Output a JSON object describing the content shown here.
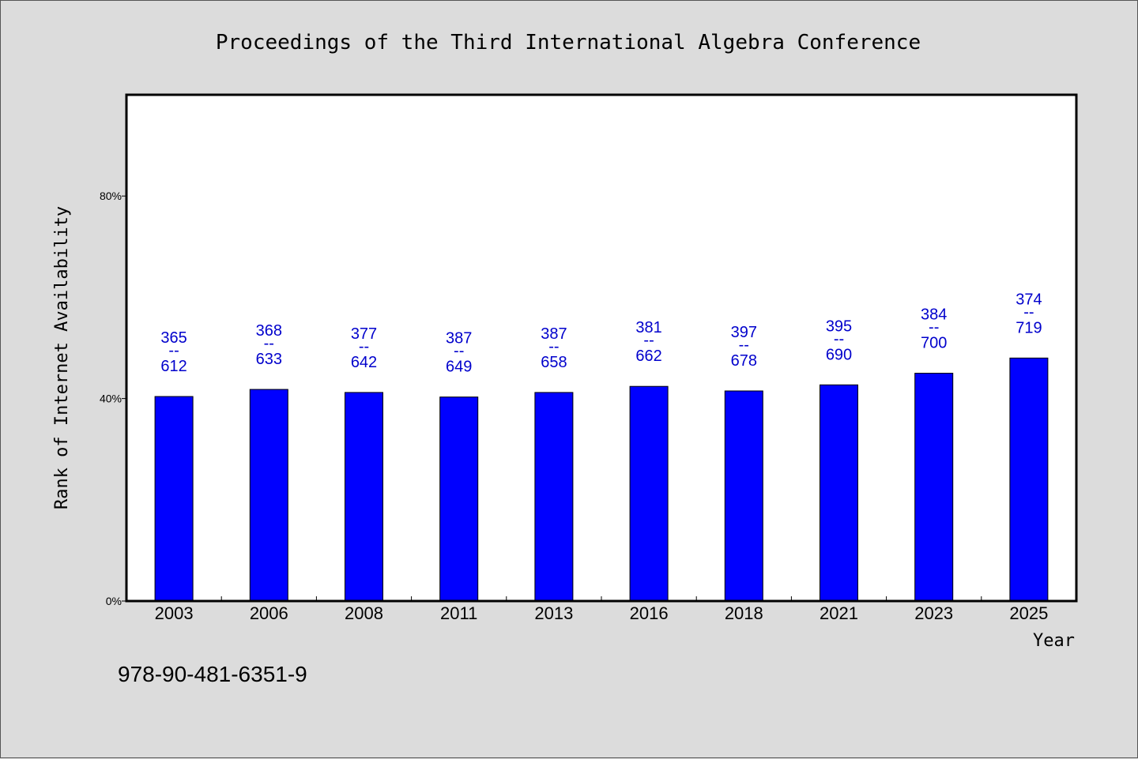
{
  "chart_data": {
    "type": "bar",
    "title": "Proceedings of the Third International Algebra Conference",
    "xlabel": "Year",
    "ylabel": "Rank of Internet Availability",
    "ylim": [
      0,
      100
    ],
    "yticks": [
      0,
      40,
      80
    ],
    "ytick_labels": [
      "0%",
      "40%",
      "80%"
    ],
    "categories": [
      "2003",
      "2006",
      "2008",
      "2011",
      "2013",
      "2016",
      "2018",
      "2021",
      "2023",
      "2025"
    ],
    "values": [
      40.4,
      41.8,
      41.2,
      40.3,
      41.2,
      42.4,
      41.5,
      42.7,
      45.0,
      48.0
    ],
    "labels_top": [
      "365",
      "368",
      "377",
      "387",
      "387",
      "381",
      "397",
      "395",
      "384",
      "374"
    ],
    "labels_sep": "--",
    "labels_bottom": [
      "612",
      "633",
      "642",
      "649",
      "658",
      "662",
      "678",
      "690",
      "700",
      "719"
    ],
    "bar_color": "#0000ff",
    "label_color": "#0000cc",
    "background_color": "#dcdcdc",
    "plot_background": "#ffffff",
    "grid": false,
    "legend": "none"
  },
  "footer": {
    "isbn": "978-90-481-6351-9"
  }
}
